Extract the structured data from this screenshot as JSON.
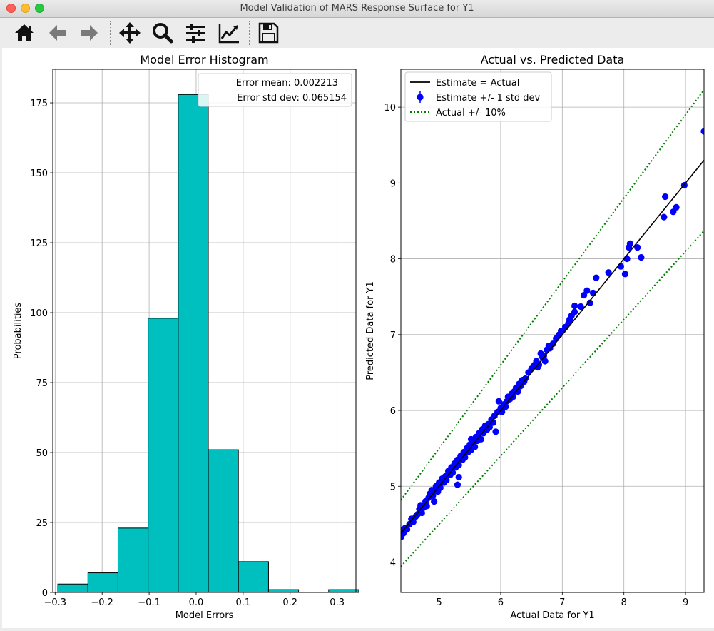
{
  "window": {
    "title": "Model Validation of MARS Response Surface for Y1"
  },
  "toolbar": {
    "tools": [
      {
        "name": "home-icon"
      },
      {
        "name": "back-arrow-icon"
      },
      {
        "name": "forward-arrow-icon"
      },
      {
        "name": "pan-move-icon"
      },
      {
        "name": "zoom-magnifier-icon"
      },
      {
        "name": "configure-subplots-icon"
      },
      {
        "name": "edit-axis-icon"
      },
      {
        "name": "save-floppy-icon"
      }
    ]
  },
  "chart_data": [
    {
      "type": "bar",
      "title": "Model Error Histogram",
      "xlabel": "Model Errors",
      "ylabel": "Probabilities",
      "xlim": [
        -0.305,
        0.34
      ],
      "ylim": [
        0,
        187
      ],
      "grid": true,
      "bar_color": "#00bfbf",
      "bin_edges": [
        -0.2943,
        -0.2302,
        -0.1662,
        -0.1022,
        -0.0381,
        0.0259,
        0.0899,
        0.154,
        0.218,
        0.282,
        0.3461
      ],
      "counts": [
        3,
        7,
        23,
        98,
        178,
        51,
        11,
        1,
        0,
        1
      ],
      "xticks": [
        -0.3,
        -0.2,
        -0.1,
        0.0,
        0.1,
        0.2,
        0.3
      ],
      "xtick_labels": [
        "−0.3",
        "−0.2",
        "−0.1",
        "0.0",
        "0.1",
        "0.2",
        "0.3"
      ],
      "yticks": [
        0,
        25,
        50,
        75,
        100,
        125,
        150,
        175
      ],
      "ytick_labels": [
        "0",
        "25",
        "50",
        "75",
        "100",
        "125",
        "150",
        "175"
      ],
      "legend": {
        "placement": "upper right",
        "entries": [
          "Error mean: 0.002213",
          "Error std dev: 0.065154"
        ]
      }
    },
    {
      "type": "scatter",
      "title": "Actual vs. Predicted Data",
      "xlabel": "Actual Data for Y1",
      "ylabel": "Predicted Data for Y1",
      "xlim": [
        4.38,
        9.3
      ],
      "ylim": [
        3.6,
        10.5
      ],
      "grid": true,
      "xticks": [
        5,
        6,
        7,
        8,
        9
      ],
      "xtick_labels": [
        "5",
        "6",
        "7",
        "8",
        "9"
      ],
      "yticks": [
        4,
        5,
        6,
        7,
        8,
        9,
        10
      ],
      "ytick_labels": [
        "4",
        "5",
        "6",
        "7",
        "8",
        "9",
        "10"
      ],
      "legend": {
        "placement": "upper left",
        "entries": [
          {
            "label": "Estimate = Actual",
            "style": "line",
            "color": "#000000"
          },
          {
            "label": "Estimate +/- 1 std dev",
            "style": "marker",
            "color": "#0000ff"
          },
          {
            "label": "Actual +/- 10%",
            "style": "dotted",
            "color": "#008000"
          }
        ]
      },
      "lines": {
        "identity": {
          "color": "#000000"
        },
        "upper_10pct": {
          "factor": 1.1,
          "color": "#008000"
        },
        "lower_10pct": {
          "factor": 0.9,
          "color": "#008000"
        }
      },
      "series": [
        {
          "marker_color": "#0000ff",
          "points": [
            [
              4.38,
              4.33
            ],
            [
              4.4,
              4.42
            ],
            [
              4.42,
              4.38
            ],
            [
              4.45,
              4.45
            ],
            [
              4.48,
              4.43
            ],
            [
              4.52,
              4.5
            ],
            [
              4.55,
              4.57
            ],
            [
              4.58,
              4.53
            ],
            [
              4.62,
              4.6
            ],
            [
              4.65,
              4.63
            ],
            [
              4.68,
              4.7
            ],
            [
              4.7,
              4.75
            ],
            [
              4.72,
              4.65
            ],
            [
              4.75,
              4.72
            ],
            [
              4.78,
              4.8
            ],
            [
              4.8,
              4.74
            ],
            [
              4.83,
              4.85
            ],
            [
              4.85,
              4.9
            ],
            [
              4.88,
              4.95
            ],
            [
              4.9,
              4.88
            ],
            [
              4.92,
              4.8
            ],
            [
              4.92,
              4.95
            ],
            [
              4.95,
              5.0
            ],
            [
              4.98,
              4.93
            ],
            [
              5.0,
              5.05
            ],
            [
              5.02,
              4.98
            ],
            [
              5.05,
              5.1
            ],
            [
              5.08,
              5.05
            ],
            [
              5.1,
              5.13
            ],
            [
              5.12,
              5.08
            ],
            [
              5.15,
              5.2
            ],
            [
              5.18,
              5.15
            ],
            [
              5.2,
              5.25
            ],
            [
              5.22,
              5.18
            ],
            [
              5.25,
              5.3
            ],
            [
              5.27,
              5.25
            ],
            [
              5.3,
              5.35
            ],
            [
              5.32,
              5.28
            ],
            [
              5.3,
              5.02
            ],
            [
              5.32,
              5.12
            ],
            [
              5.35,
              5.4
            ],
            [
              5.38,
              5.35
            ],
            [
              5.4,
              5.45
            ],
            [
              5.42,
              5.38
            ],
            [
              5.45,
              5.5
            ],
            [
              5.47,
              5.45
            ],
            [
              5.5,
              5.55
            ],
            [
              5.52,
              5.48
            ],
            [
              5.52,
              5.62
            ],
            [
              5.55,
              5.58
            ],
            [
              5.58,
              5.52
            ],
            [
              5.6,
              5.65
            ],
            [
              5.62,
              5.6
            ],
            [
              5.65,
              5.7
            ],
            [
              5.68,
              5.62
            ],
            [
              5.7,
              5.75
            ],
            [
              5.72,
              5.7
            ],
            [
              5.75,
              5.8
            ],
            [
              5.78,
              5.75
            ],
            [
              5.8,
              5.82
            ],
            [
              5.82,
              5.78
            ],
            [
              5.85,
              5.88
            ],
            [
              5.88,
              5.84
            ],
            [
              5.9,
              5.93
            ],
            [
              5.92,
              5.72
            ],
            [
              5.95,
              5.98
            ],
            [
              5.97,
              6.12
            ],
            [
              6.0,
              6.03
            ],
            [
              6.02,
              5.98
            ],
            [
              6.05,
              6.08
            ],
            [
              6.08,
              6.05
            ],
            [
              6.1,
              6.12
            ],
            [
              6.12,
              6.18
            ],
            [
              6.15,
              6.15
            ],
            [
              6.18,
              6.22
            ],
            [
              6.2,
              6.18
            ],
            [
              6.22,
              6.25
            ],
            [
              6.25,
              6.3
            ],
            [
              6.28,
              6.25
            ],
            [
              6.3,
              6.35
            ],
            [
              6.32,
              6.32
            ],
            [
              6.35,
              6.4
            ],
            [
              6.38,
              6.38
            ],
            [
              6.4,
              6.42
            ],
            [
              6.45,
              6.5
            ],
            [
              6.5,
              6.55
            ],
            [
              6.55,
              6.6
            ],
            [
              6.58,
              6.65
            ],
            [
              6.6,
              6.57
            ],
            [
              6.62,
              6.6
            ],
            [
              6.65,
              6.75
            ],
            [
              6.68,
              6.7
            ],
            [
              6.7,
              6.72
            ],
            [
              6.72,
              6.65
            ],
            [
              6.75,
              6.8
            ],
            [
              6.78,
              6.85
            ],
            [
              6.8,
              6.82
            ],
            [
              6.85,
              6.88
            ],
            [
              6.9,
              6.95
            ],
            [
              6.95,
              7.0
            ],
            [
              6.98,
              7.05
            ],
            [
              7.0,
              7.05
            ],
            [
              7.05,
              7.1
            ],
            [
              7.1,
              7.15
            ],
            [
              7.12,
              7.2
            ],
            [
              7.15,
              7.25
            ],
            [
              7.2,
              7.3
            ],
            [
              7.2,
              7.38
            ],
            [
              7.3,
              7.37
            ],
            [
              7.35,
              7.52
            ],
            [
              7.4,
              7.58
            ],
            [
              7.45,
              7.42
            ],
            [
              7.5,
              7.55
            ],
            [
              7.55,
              7.75
            ],
            [
              7.75,
              7.82
            ],
            [
              7.95,
              7.9
            ],
            [
              8.02,
              7.8
            ],
            [
              8.05,
              8.0
            ],
            [
              8.08,
              8.15
            ],
            [
              8.1,
              8.2
            ],
            [
              8.22,
              8.15
            ],
            [
              8.28,
              8.02
            ],
            [
              8.65,
              8.55
            ],
            [
              8.67,
              8.82
            ],
            [
              8.8,
              8.62
            ],
            [
              8.85,
              8.68
            ],
            [
              8.98,
              8.97
            ],
            [
              9.3,
              9.68
            ]
          ]
        }
      ]
    }
  ]
}
